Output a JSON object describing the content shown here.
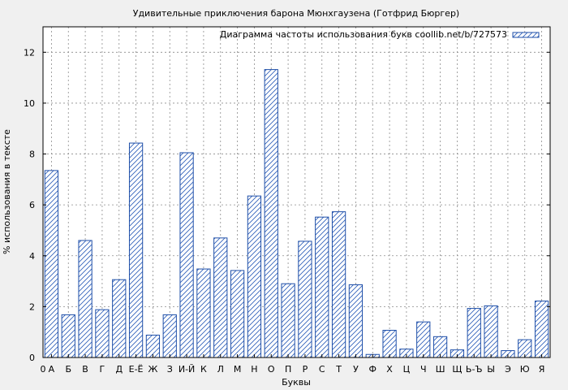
{
  "chart_data": {
    "type": "bar",
    "title": "Удивительные приключения барона Мюнхгаузена (Готфрид Бюргер)",
    "xlabel": "Буквы",
    "ylabel": "% использования в тексте",
    "legend": {
      "label": "Диаграмма частоты использования букв coollib.net/b/727573",
      "placement": "top-right"
    },
    "ylim": [
      0,
      13
    ],
    "yticks": [
      0,
      2,
      4,
      6,
      8,
      10,
      12
    ],
    "x_first_tick": "0",
    "categories": [
      "А",
      "Б",
      "В",
      "Г",
      "Д",
      "Е-Ё",
      "Ж",
      "З",
      "И-Й",
      "К",
      "Л",
      "М",
      "Н",
      "О",
      "П",
      "Р",
      "С",
      "Т",
      "У",
      "Ф",
      "Х",
      "Ц",
      "Ч",
      "Ш",
      "Щ",
      "Ь-Ъ",
      "Ы",
      "Э",
      "Ю",
      "Я"
    ],
    "values": [
      7.35,
      1.68,
      4.6,
      1.88,
      3.06,
      8.43,
      0.88,
      1.68,
      8.05,
      3.48,
      4.7,
      3.42,
      6.35,
      11.32,
      2.9,
      4.57,
      5.52,
      5.73,
      2.86,
      0.12,
      1.07,
      0.33,
      1.4,
      0.82,
      0.3,
      1.93,
      2.03,
      0.27,
      0.7,
      2.22
    ],
    "grid": true,
    "colors": {
      "bar_stroke": "#1f4fa8",
      "hatch": "#2a5cb8",
      "plot_bg": "#ffffff",
      "page_bg": "#f0f0f0",
      "grid": "#8c8c8c"
    }
  }
}
